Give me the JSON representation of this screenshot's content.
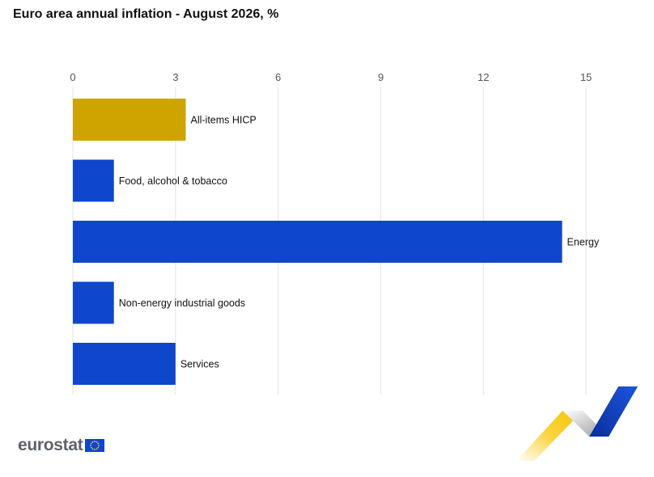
{
  "title": "Euro area annual inflation - August 2026, %",
  "logo": {
    "text": "eurostat"
  },
  "colors": {
    "highlight": "#cfa400",
    "bar": "#0e47cb",
    "grid": "#e3e3e3",
    "tick": "#555555"
  },
  "chart_data": {
    "type": "bar",
    "orientation": "horizontal",
    "title": "Euro area annual inflation - August 2026, %",
    "categories": [
      "All-items HICP",
      "Food, alcohol & tobacco",
      "Energy",
      "Non-energy industrial goods",
      "Services"
    ],
    "values": [
      3.3,
      1.2,
      14.3,
      1.2,
      3.0
    ],
    "highlight_index": 0,
    "xticks": [
      0,
      3,
      6,
      9,
      12,
      15
    ],
    "xlim": [
      0,
      15.85
    ],
    "grid": true,
    "axis_position": "top",
    "xlabel": "",
    "ylabel": ""
  }
}
